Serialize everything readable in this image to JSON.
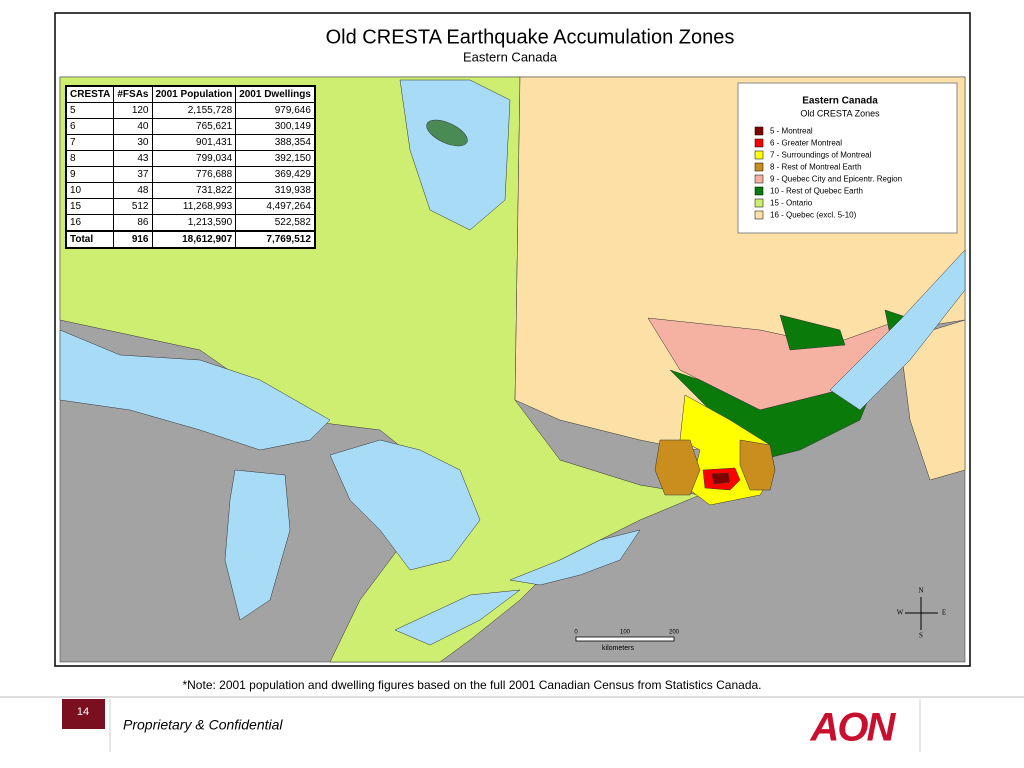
{
  "map": {
    "title": "Old CRESTA Earthquake Accumulation Zones",
    "subtitle": "Eastern Canada",
    "table": {
      "header": [
        "CRESTA",
        "#FSAs",
        "2001 Population",
        "2001 Dwellings"
      ],
      "rows": [
        [
          "5",
          "120",
          "2,155,728",
          "979,646"
        ],
        [
          "6",
          "40",
          "765,621",
          "300,149"
        ],
        [
          "7",
          "30",
          "901,431",
          "388,354"
        ],
        [
          "8",
          "43",
          "799,034",
          "392,150"
        ],
        [
          "9",
          "37",
          "776,688",
          "369,429"
        ],
        [
          "10",
          "48",
          "731,822",
          "319,938"
        ],
        [
          "15",
          "512",
          "11,268,993",
          "4,497,264"
        ],
        [
          "16",
          "86",
          "1,213,590",
          "522,582"
        ]
      ],
      "total": [
        "Total",
        "916",
        "18,612,907",
        "7,769,512"
      ]
    },
    "legend": {
      "title": "Eastern Canada",
      "subtitle": "Old CRESTA Zones",
      "items": [
        {
          "label": "5 - Montreal",
          "color": "#800000"
        },
        {
          "label": "6 - Greater Montreal",
          "color": "#ff0000"
        },
        {
          "label": "7 - Surroundings of Montreal",
          "color": "#ffff00"
        },
        {
          "label": "8 - Rest of Montreal Earth",
          "color": "#c98e1e"
        },
        {
          "label": "9 - Quebec City and Epicentr. Region",
          "color": "#f5b2a2"
        },
        {
          "label": "10 - Rest of Quebec Earth",
          "color": "#0a7a0a"
        },
        {
          "label": "15 - Ontario",
          "color": "#cdee70"
        },
        {
          "label": "16 - Quebec (excl. 5-10)",
          "color": "#fde0a6"
        }
      ]
    },
    "scale": {
      "ticks": [
        "0",
        "100",
        "200"
      ],
      "unit": "kilometers"
    },
    "compass": {
      "n": "N",
      "s": "S",
      "e": "E",
      "w": "W"
    }
  },
  "note": "*Note: 2001 population and dwelling figures based on the full 2001 Canadian Census from Statistics Canada.",
  "footer": {
    "page": "14",
    "text": "Proprietary & Confidential",
    "logo": "AON"
  }
}
